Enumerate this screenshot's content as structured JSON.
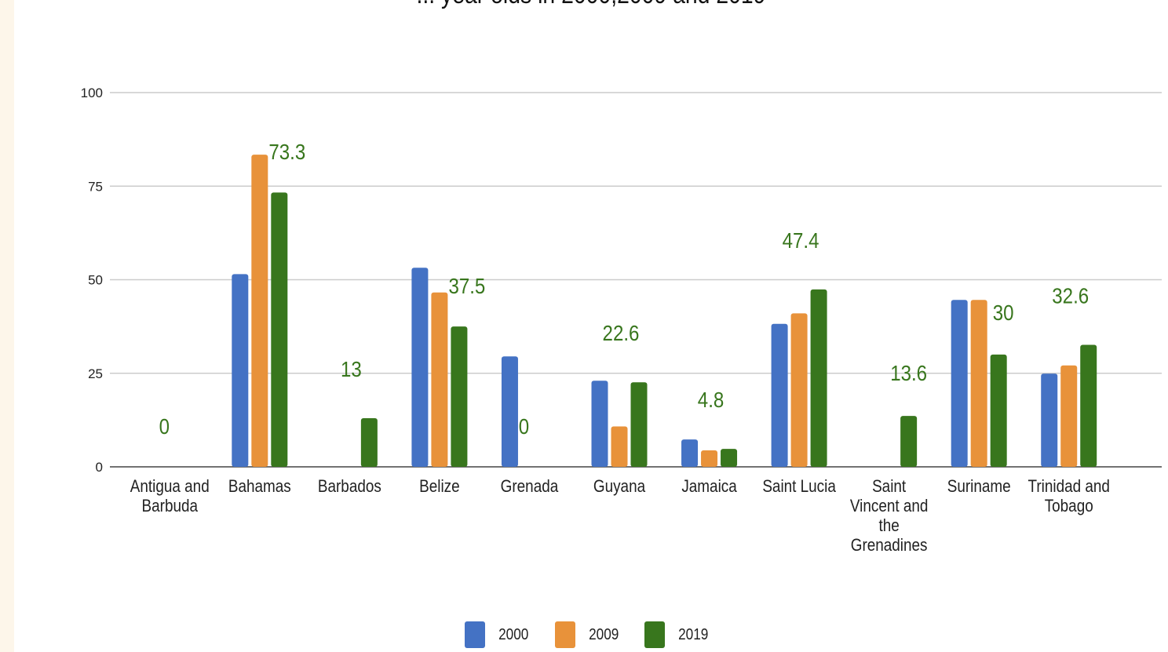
{
  "chart_data": {
    "type": "bar",
    "title": "... year olds in 2000,2009 and 2019",
    "categories": [
      "Antigua and Barbuda",
      "Bahamas",
      "Barbados",
      "Belize",
      "Grenada",
      "Guyana",
      "Jamaica",
      "Saint Lucia",
      "Saint Vincent and the Grenadines",
      "Suriname",
      "Trinidad and Tobago"
    ],
    "series": [
      {
        "name": "2000",
        "color": "#4472c4",
        "values": [
          null,
          51.5,
          null,
          53.2,
          29.5,
          23.0,
          7.3,
          38.2,
          null,
          44.6,
          24.9
        ]
      },
      {
        "name": "2009",
        "color": "#e8923a",
        "values": [
          null,
          83.4,
          null,
          46.6,
          null,
          10.8,
          4.4,
          41.0,
          null,
          44.6,
          27.1
        ]
      },
      {
        "name": "2019",
        "color": "#38761d",
        "values": [
          0,
          73.3,
          13,
          37.5,
          0,
          22.6,
          4.8,
          47.4,
          13.6,
          30,
          32.6
        ]
      }
    ],
    "data_labels_2019": [
      "0",
      "73.3",
      "13",
      "37.5",
      "0",
      "22.6",
      "4.8",
      "47.4",
      "13.6",
      "30",
      "32.6"
    ],
    "ylim": [
      0,
      100
    ],
    "yticks": [
      0,
      25,
      50,
      75,
      100
    ],
    "xlabel": "",
    "ylabel": "",
    "grid": true,
    "legend_position": "bottom"
  }
}
